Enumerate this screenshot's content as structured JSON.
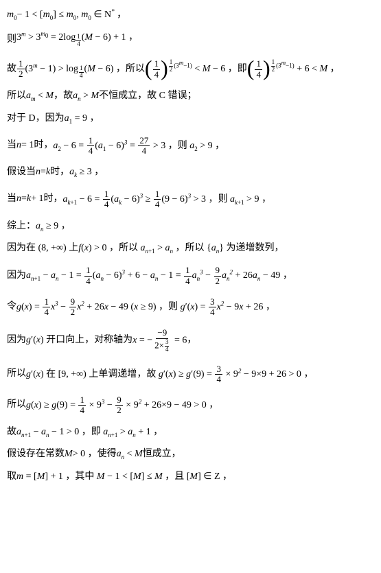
{
  "lines": {
    "l1": {
      "a": "m",
      "b": "0",
      "c": "− 1 < [",
      "d": "m",
      "e": "0",
      "f": "] ≤ ",
      "g": "m",
      "h": "0",
      "i": ", ",
      "j": "m",
      "k": "0",
      "l": " ∈ N",
      "m": "*",
      "n": " ，"
    },
    "l2": {
      "a": "则",
      "b": "3",
      "c": "m",
      "d": " > 3",
      "e": "m",
      "f": "0",
      "g": " = 2log",
      "h": "1",
      "i": "4",
      "j": "(",
      "k": "M",
      "l": " − 6) + 1 ，"
    },
    "l3": {
      "a": "故",
      "b": "1",
      "c": "2",
      "d": "(3",
      "e": "m",
      "f": " − 1) > log",
      "g": "1",
      "h": "4",
      "i": "(",
      "j": "M",
      "k": " − 6) ，所以",
      "l": "1",
      "m": "4",
      "n": "1",
      "o": "2",
      "p": "(3",
      "q": "m",
      "r": "−1)",
      "s": " < ",
      "t": "M",
      "u": " − 6 ，即",
      "v": "1",
      "w": "4",
      "x": "1",
      "y": "2",
      "z": "(3",
      "aa": "m",
      "ab": "−1)",
      "ac": " + 6 < ",
      "ad": "M",
      "ae": " ，"
    },
    "l4": {
      "a": "所以",
      "b": "a",
      "c": "m",
      "d": " < ",
      "e": "M",
      "f": " ，故 ",
      "g": "a",
      "h": "n",
      "i": " > ",
      "j": "M",
      "k": "不恒成立，故 C 错误；"
    },
    "l5": {
      "a": "对于 D，因为 ",
      "b": "a",
      "c": "1",
      "d": " = 9 ，"
    },
    "l6": {
      "a": "当 ",
      "b": "n",
      "c": " = 1时，",
      "d": "a",
      "e": "2",
      "f": " − 6 = ",
      "g": "1",
      "h": "4",
      "i": "(",
      "j": "a",
      "k": "1",
      "l": " − 6)",
      "m": "3",
      "n": " = ",
      "o": "27",
      "p": "4",
      "q": " > 3 ，则 ",
      "r": "a",
      "s": "2",
      "t": " > 9 ，"
    },
    "l7": {
      "a": "假设当 ",
      "b": "n",
      "c": " = ",
      "d": "k",
      "e": " 时，",
      "f": "a",
      "g": "k",
      "h": " ≥ 3 ，"
    },
    "l8": {
      "a": "当 ",
      "b": "n",
      "c": " = ",
      "d": "k",
      "e": " + 1时，",
      "f": "a",
      "g": "k",
      "h": "+1",
      "i": " − 6 = ",
      "j": "1",
      "k": "4",
      "l": "(",
      "m": "a",
      "n": "k",
      "o": " − 6)",
      "p": "3",
      "q": " ≥ ",
      "r": "1",
      "s": "4",
      "t": "(9 − 6)",
      "u": "3",
      "v": " > 3 ，则 ",
      "w": "a",
      "x": "k",
      "y": "+1",
      "z": " > 9 ，"
    },
    "l9": {
      "a": "综上：",
      "b": "a",
      "c": "n",
      "d": " ≥ 9 ，"
    },
    "l10": {
      "a": "因为在 (8, +∞) 上 ",
      "b": "f",
      "c": "(",
      "d": "x",
      "e": ") > 0 ，所以 ",
      "f": "a",
      "g": "n",
      "h": "+1",
      "i": " > ",
      "j": "a",
      "k": "n",
      "l": " ，所以 {",
      "m": "a",
      "n": "n",
      "o": "} 为递增数列，"
    },
    "l11": {
      "a": "因为 ",
      "b": "a",
      "c": "n",
      "d": "+1",
      "e": " − ",
      "f": "a",
      "g": "n",
      "h": " − 1 = ",
      "i": "1",
      "j": "4",
      "k": "(",
      "l": "a",
      "m": "n",
      "n": " − 6)",
      "o": "3",
      "p": " + 6 − ",
      "q": "a",
      "r": "n",
      "s": " − 1 = ",
      "t": "1",
      "u": "4",
      "v": "a",
      "w": "n",
      "x": "3",
      "y": " − ",
      "z": "9",
      "aa": "2",
      "ab": "a",
      "ac": "n",
      "ad": "2",
      "ae": " + 26",
      "af": "a",
      "ag": "n",
      "ah": " − 49 ，"
    },
    "l12": {
      "a": "令 ",
      "b": "g",
      "c": "(",
      "d": "x",
      "e": ") = ",
      "f": "1",
      "g": "4",
      "h": "x",
      "i": "3",
      "j": " − ",
      "k": "9",
      "l": "2",
      "m": "x",
      "n": "2",
      "o": " + 26",
      "p": "x",
      "q": " − 49 (",
      "r": "x",
      "s": " ≥ 9) ，则 ",
      "t": "g",
      "u": "′(",
      "v": "x",
      "w": ") = ",
      "x": "3",
      "y": "4",
      "z": "x",
      "aa": "2",
      "ab": " − 9",
      "ac": "x",
      "ad": " + 26 ，"
    },
    "l13": {
      "a": "因为 ",
      "b": "g",
      "c": "′(",
      "d": "x",
      "e": ") 开口向上，对称轴为 ",
      "f": "x",
      "g": " = −",
      "h": "−9",
      "i": "2×",
      "j": "3",
      "k": "4",
      "l": " = 6",
      "m": " ，"
    },
    "l14": {
      "a": "所以 ",
      "b": "g",
      "c": "′(",
      "d": "x",
      "e": ") 在 [9, +∞) 上单调递增，故 ",
      "f": "g",
      "g": "′(",
      "h": "x",
      "i": ") ≥ ",
      "j": "g",
      "k": "′(9) = ",
      "l": "3",
      "m": "4",
      "n": " × 9",
      "o": "2",
      "p": " − 9×9 + 26 > 0 ，"
    },
    "l15": {
      "a": "所以 ",
      "b": "g",
      "c": "(",
      "d": "x",
      "e": ") ≥ ",
      "f": "g",
      "g": "(9) = ",
      "h": "1",
      "i": "4",
      "j": " × 9",
      "k": "3",
      "l": " − ",
      "m": "9",
      "n": "2",
      "o": " × 9",
      "p": "2",
      "q": " + 26×9 − 49 > 0 ，"
    },
    "l16": {
      "a": "故 ",
      "b": "a",
      "c": "n",
      "d": "+1",
      "e": " − ",
      "f": "a",
      "g": "n",
      "h": " − 1 > 0 ，即 ",
      "i": "a",
      "j": "n",
      "k": "+1",
      "l": " > ",
      "m": "a",
      "n": "n",
      "o": " + 1 ，"
    },
    "l17": {
      "a": "假设存在常数 ",
      "b": "M",
      "c": " > 0 ，使得 ",
      "d": "a",
      "e": "n",
      "f": " < ",
      "g": "M",
      "h": " 恒成立，"
    },
    "l18": {
      "a": "取 ",
      "b": "m",
      "c": " = [",
      "d": "M",
      "e": "] + 1 ，其中 ",
      "f": "M",
      "g": " − 1 < [",
      "h": "M",
      "i": "] ≤ ",
      "j": "M",
      "k": " ，且 [",
      "l": "M",
      "m": "] ∈ Z ，"
    }
  }
}
